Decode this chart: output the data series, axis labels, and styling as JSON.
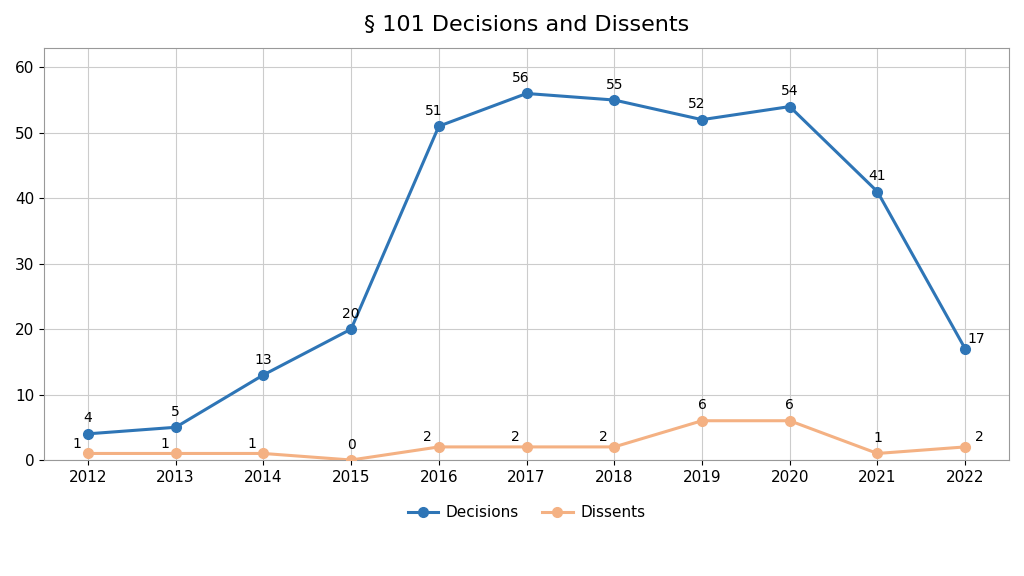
{
  "title": "§ 101 Decisions and Dissents",
  "years": [
    2012,
    2013,
    2014,
    2015,
    2016,
    2017,
    2018,
    2019,
    2020,
    2021,
    2022
  ],
  "decisions": [
    4,
    5,
    13,
    20,
    51,
    56,
    55,
    52,
    54,
    41,
    17
  ],
  "dissents": [
    1,
    1,
    1,
    0,
    2,
    2,
    2,
    6,
    6,
    1,
    2
  ],
  "decisions_color": "#2E75B6",
  "dissents_color": "#F4B183",
  "decisions_label": "Decisions",
  "dissents_label": "Dissents",
  "ylim": [
    0,
    63
  ],
  "yticks": [
    0,
    10,
    20,
    30,
    40,
    50,
    60
  ],
  "background_color": "#ffffff",
  "grid_color": "#cccccc",
  "title_fontsize": 16,
  "label_fontsize": 11,
  "annotation_fontsize": 10,
  "legend_fontsize": 11,
  "marker": "o",
  "linewidth": 2.2,
  "markersize": 7
}
